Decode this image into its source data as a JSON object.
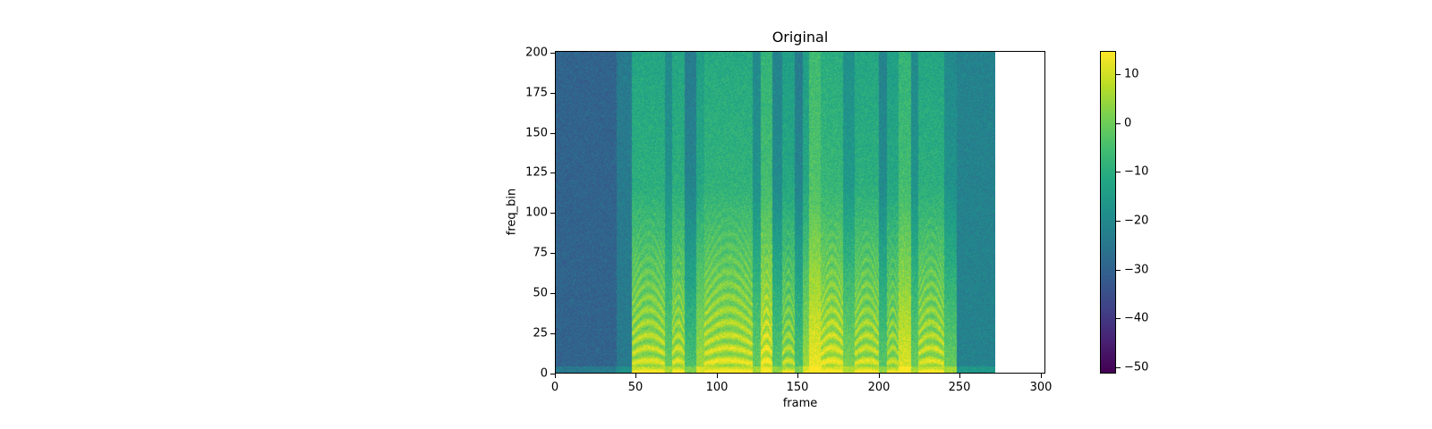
{
  "chart_data": {
    "type": "heatmap",
    "title": "Original",
    "xlabel": "frame",
    "ylabel": "freq_bin",
    "xlim": [
      0,
      303
    ],
    "ylim": [
      0,
      201
    ],
    "x_ticks": [
      0,
      50,
      100,
      150,
      200,
      250,
      300
    ],
    "y_ticks": [
      0,
      25,
      50,
      75,
      100,
      125,
      150,
      175,
      200
    ],
    "data_extent_frames": [
      0,
      272
    ],
    "colormap": "viridis",
    "colorbar": {
      "range": [
        -51.3,
        14.8
      ],
      "ticks": [
        10,
        0,
        -10,
        -20,
        -30,
        -40,
        -50
      ],
      "tick_labels": [
        "10",
        "0",
        "−10",
        "−20",
        "−30",
        "−40",
        "−50"
      ]
    },
    "grid": false,
    "description": "Log-magnitude spectrogram of speech; silence (approx -30 dB) for frames 0-47, voiced segments with harmonics below bin ~60 and bright energy (> 10) near bins 0-25.",
    "segments": [
      {
        "start": 0,
        "end": 38,
        "level": -30,
        "harm": 0
      },
      {
        "start": 38,
        "end": 47,
        "level": -24,
        "harm": 0
      },
      {
        "start": 47,
        "end": 68,
        "level": -6,
        "harm": 1
      },
      {
        "start": 68,
        "end": 72,
        "level": -14,
        "harm": 0
      },
      {
        "start": 72,
        "end": 80,
        "level": -6,
        "harm": 1
      },
      {
        "start": 80,
        "end": 87,
        "level": -18,
        "harm": 0
      },
      {
        "start": 87,
        "end": 92,
        "level": -8,
        "harm": 0
      },
      {
        "start": 92,
        "end": 122,
        "level": -5,
        "harm": 1
      },
      {
        "start": 122,
        "end": 127,
        "level": -14,
        "harm": 0
      },
      {
        "start": 127,
        "end": 134,
        "level": -2,
        "harm": 1
      },
      {
        "start": 134,
        "end": 140,
        "level": -16,
        "harm": 0
      },
      {
        "start": 140,
        "end": 148,
        "level": -8,
        "harm": 1
      },
      {
        "start": 148,
        "end": 153,
        "level": -18,
        "harm": 0
      },
      {
        "start": 153,
        "end": 157,
        "level": -8,
        "harm": 0
      },
      {
        "start": 157,
        "end": 164,
        "level": 0,
        "harm": 0
      },
      {
        "start": 164,
        "end": 178,
        "level": -4,
        "harm": 1
      },
      {
        "start": 178,
        "end": 185,
        "level": -12,
        "harm": 0
      },
      {
        "start": 185,
        "end": 200,
        "level": -6,
        "harm": 1
      },
      {
        "start": 200,
        "end": 205,
        "level": -16,
        "harm": 0
      },
      {
        "start": 205,
        "end": 212,
        "level": -8,
        "harm": 1
      },
      {
        "start": 212,
        "end": 220,
        "level": -2,
        "harm": 0
      },
      {
        "start": 220,
        "end": 224,
        "level": -14,
        "harm": 0
      },
      {
        "start": 224,
        "end": 240,
        "level": -6,
        "harm": 1
      },
      {
        "start": 240,
        "end": 248,
        "level": -14,
        "harm": 0
      },
      {
        "start": 248,
        "end": 272,
        "level": -22,
        "harm": 0
      }
    ]
  }
}
